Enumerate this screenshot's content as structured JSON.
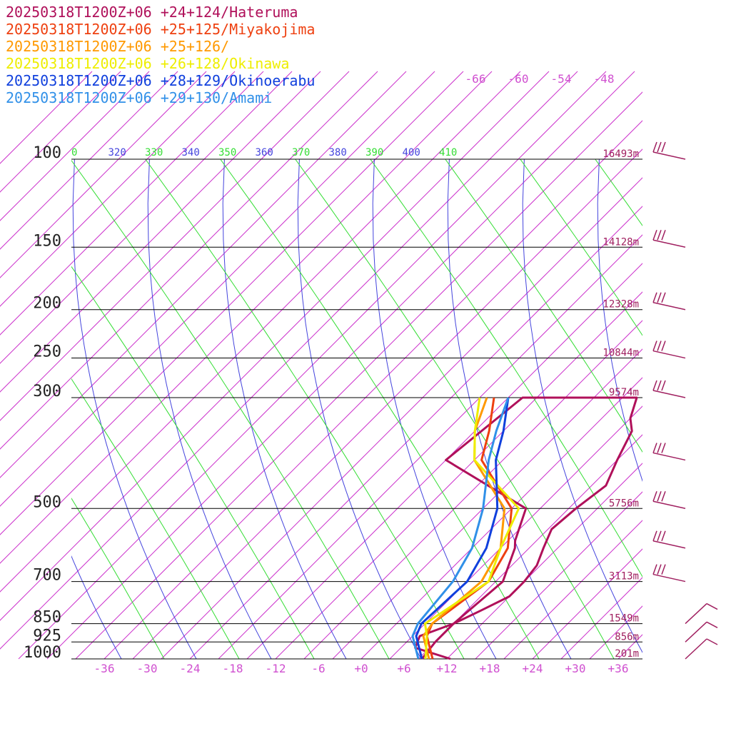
{
  "chart_data": {
    "type": "line",
    "title": "",
    "xlabel": "",
    "ylabel": "",
    "y_scale": "log-pressure",
    "pressure_levels": [
      100,
      150,
      200,
      250,
      300,
      500,
      700,
      850,
      925,
      1000
    ],
    "pressure_labels": [
      "100",
      "150",
      "200",
      "250",
      "300",
      "500",
      "700",
      "850",
      "925",
      "1000"
    ],
    "heights": [
      {
        "p": 100,
        "label": "16493m"
      },
      {
        "p": 150,
        "label": "14128m"
      },
      {
        "p": 200,
        "label": "12328m"
      },
      {
        "p": 250,
        "label": "10844m"
      },
      {
        "p": 300,
        "label": "9574m"
      },
      {
        "p": 500,
        "label": "5756m"
      },
      {
        "p": 700,
        "label": "3113m"
      },
      {
        "p": 850,
        "label": "1549m"
      },
      {
        "p": 925,
        "label": "856m"
      },
      {
        "p": 1000,
        "label": "201m"
      }
    ],
    "temp_ticks": [
      "-36",
      "-30",
      "-24",
      "-18",
      "-12",
      "-6",
      "+0",
      "+6",
      "+12",
      "+18",
      "+24",
      "+30",
      "+36"
    ],
    "upper_temp_labels": [
      "-66",
      "-60",
      "-54",
      "-48"
    ],
    "theta_labels": [
      "0",
      "320",
      "330",
      "340",
      "350",
      "360",
      "370",
      "380",
      "390",
      "400",
      "410"
    ],
    "colors": {
      "isobar": "#000000",
      "isotherm": "#cc33cc",
      "dry_adiabat": "#4444dd",
      "moist_adiabat": "#33dd33",
      "height_label": "#a02060",
      "barb": "#a02060"
    },
    "series": [
      {
        "name": "20250318T1200Z+06 +24+124/Hateruma",
        "color": "#b0105a",
        "points": [
          [
            1000,
            12.5
          ],
          [
            950,
            6
          ],
          [
            900,
            5
          ],
          [
            850,
            8
          ],
          [
            800,
            10
          ],
          [
            750,
            12
          ],
          [
            700,
            12
          ],
          [
            650,
            11.5
          ],
          [
            600,
            10
          ],
          [
            550,
            8.5
          ],
          [
            500,
            9
          ],
          [
            450,
            10
          ],
          [
            400,
            8
          ],
          [
            350,
            6
          ],
          [
            330,
            4
          ],
          [
            300,
            2
          ],
          [
            300,
            -14
          ],
          [
            400,
            -16
          ],
          [
            500,
            2
          ],
          [
            580,
            5
          ],
          [
            600,
            6
          ],
          [
            700,
            9
          ],
          [
            850,
            8
          ],
          [
            925,
            8
          ],
          [
            1000,
            8.5
          ]
        ]
      },
      {
        "name": "20250318T1200Z+06 +25+125/Miyakojima",
        "color": "#ee4010",
        "points": [
          [
            1000,
            10
          ],
          [
            900,
            6
          ],
          [
            850,
            5
          ],
          [
            700,
            7
          ],
          [
            600,
            5
          ],
          [
            500,
            0
          ],
          [
            400,
            -11
          ],
          [
            350,
            -14
          ],
          [
            300,
            -18
          ]
        ]
      },
      {
        "name": "20250318T1200Z+06 +25+126/",
        "color": "#ff9900",
        "points": [
          [
            1000,
            9.5
          ],
          [
            900,
            5.5
          ],
          [
            850,
            5
          ],
          [
            700,
            6
          ],
          [
            600,
            4
          ],
          [
            500,
            -1
          ],
          [
            400,
            -12
          ],
          [
            350,
            -16
          ],
          [
            300,
            -19
          ]
        ]
      },
      {
        "name": "20250318T1200Z+06 +26+128/Okinawa",
        "color": "#eeee00",
        "points": [
          [
            1000,
            9
          ],
          [
            900,
            6
          ],
          [
            850,
            4
          ],
          [
            700,
            7
          ],
          [
            600,
            4
          ],
          [
            500,
            1
          ],
          [
            400,
            -12
          ],
          [
            350,
            -16
          ],
          [
            300,
            -20
          ]
        ]
      },
      {
        "name": "20250318T1200Z+06 +28+129/Okinoerabu",
        "color": "#1040dd",
        "points": [
          [
            1000,
            8.5
          ],
          [
            900,
            4.5
          ],
          [
            850,
            3.5
          ],
          [
            700,
            4
          ],
          [
            600,
            2
          ],
          [
            500,
            -2
          ],
          [
            400,
            -9
          ],
          [
            350,
            -12
          ],
          [
            300,
            -16
          ]
        ]
      },
      {
        "name": "20250318T1200Z+06 +29+130/Amami",
        "color": "#3090e8",
        "points": [
          [
            1000,
            8
          ],
          [
            900,
            4
          ],
          [
            850,
            3
          ],
          [
            700,
            2
          ],
          [
            600,
            0
          ],
          [
            500,
            -4
          ],
          [
            400,
            -10
          ],
          [
            350,
            -13
          ],
          [
            300,
            -16
          ]
        ]
      }
    ],
    "grid": true
  }
}
